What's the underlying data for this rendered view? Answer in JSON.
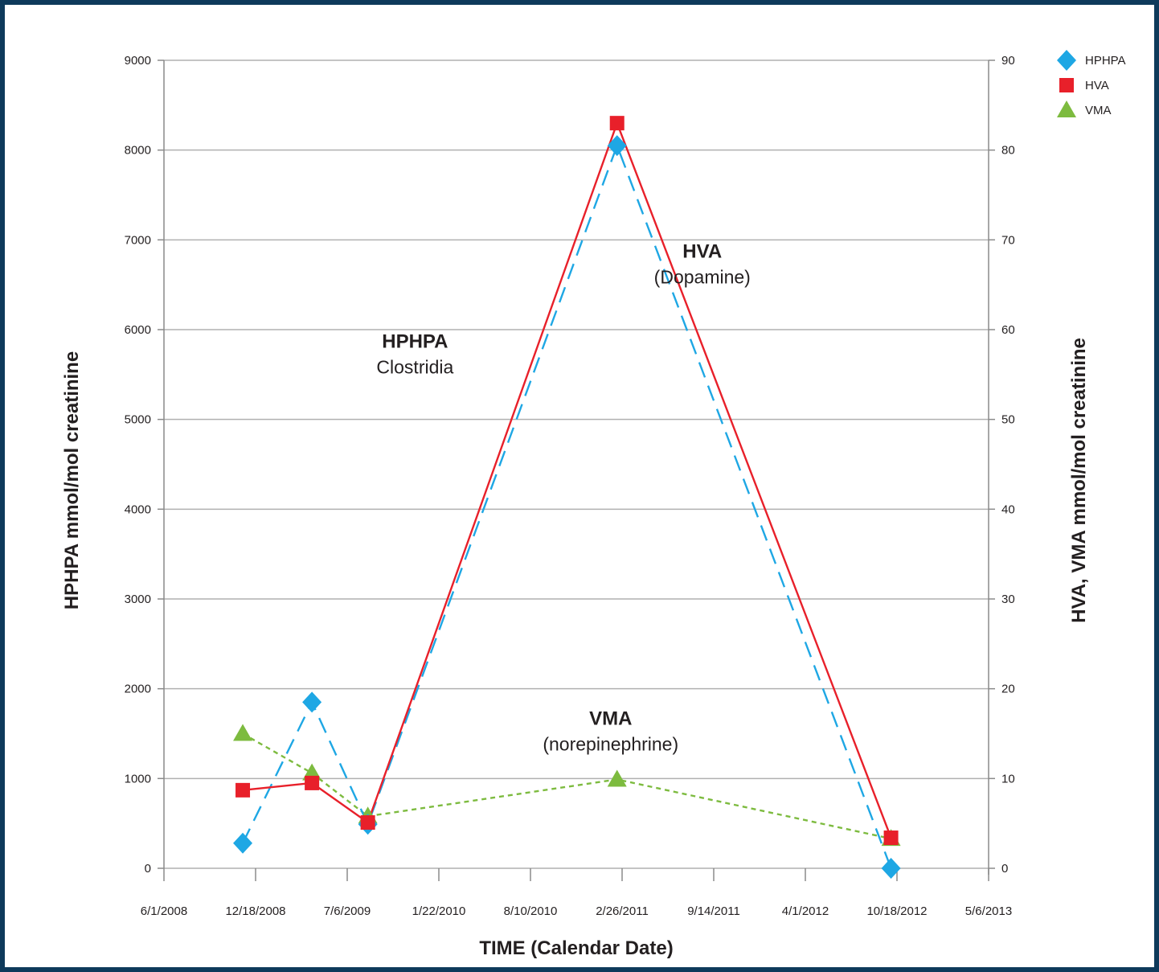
{
  "chart_data": {
    "type": "scatter",
    "xlabel": "TIME (Calendar Date)",
    "ylabel_left": "HPHPA mmol/mol creatinine",
    "ylabel_right": "HVA, VMA mmol/mol creatinine",
    "x_ticks": [
      "6/1/2008",
      "12/18/2008",
      "7/6/2009",
      "1/22/2010",
      "8/10/2010",
      "2/26/2011",
      "9/14/2011",
      "4/1/2012",
      "10/18/2012",
      "5/6/2013"
    ],
    "xlim": [
      "2008-06-01",
      "2013-05-06"
    ],
    "ylim_left": [
      0,
      9000
    ],
    "ylim_right": [
      0,
      90
    ],
    "y_ticks_left": [
      "0",
      "1000",
      "2000",
      "3000",
      "4000",
      "5000",
      "6000",
      "7000",
      "8000",
      "9000"
    ],
    "y_ticks_right": [
      "0",
      "10",
      "20",
      "30",
      "40",
      "50",
      "60",
      "70",
      "80",
      "90"
    ],
    "grid": "horizontal",
    "legend_position": "top-right",
    "series": [
      {
        "name": "HPHPA",
        "axis": "left",
        "color": "#1ea7e4",
        "marker": "diamond",
        "line": "dashed",
        "points": [
          {
            "x": "2008-11-20",
            "y": 280
          },
          {
            "x": "2009-04-20",
            "y": 1850
          },
          {
            "x": "2009-08-20",
            "y": 490
          },
          {
            "x": "2011-02-15",
            "y": 8050
          },
          {
            "x": "2012-10-05",
            "y": 0
          }
        ]
      },
      {
        "name": "HVA",
        "axis": "right",
        "color": "#e8202a",
        "marker": "square",
        "line": "solid",
        "points": [
          {
            "x": "2008-11-20",
            "y": 8.7
          },
          {
            "x": "2009-04-20",
            "y": 9.5
          },
          {
            "x": "2009-08-20",
            "y": 5.1
          },
          {
            "x": "2011-02-15",
            "y": 83
          },
          {
            "x": "2012-10-05",
            "y": 3.4
          }
        ]
      },
      {
        "name": "VMA",
        "axis": "right",
        "color": "#7dbb3f",
        "marker": "triangle",
        "line": "dotted",
        "points": [
          {
            "x": "2008-11-20",
            "y": 15
          },
          {
            "x": "2009-04-20",
            "y": 10.6
          },
          {
            "x": "2009-08-20",
            "y": 5.8
          },
          {
            "x": "2011-02-15",
            "y": 9.9
          },
          {
            "x": "2012-10-05",
            "y": 3.3
          }
        ]
      }
    ],
    "annotations": [
      {
        "bold": "HPHPA",
        "regular": "Clostridia",
        "x": "2009-12-01",
        "y": 5800
      },
      {
        "bold": "HVA",
        "regular": "(Dopamine)",
        "x": "2011-08-20",
        "y": 6800
      },
      {
        "bold": "VMA",
        "regular": "(norepinephrine)",
        "x": "2011-02-01",
        "y": 1600
      }
    ]
  }
}
